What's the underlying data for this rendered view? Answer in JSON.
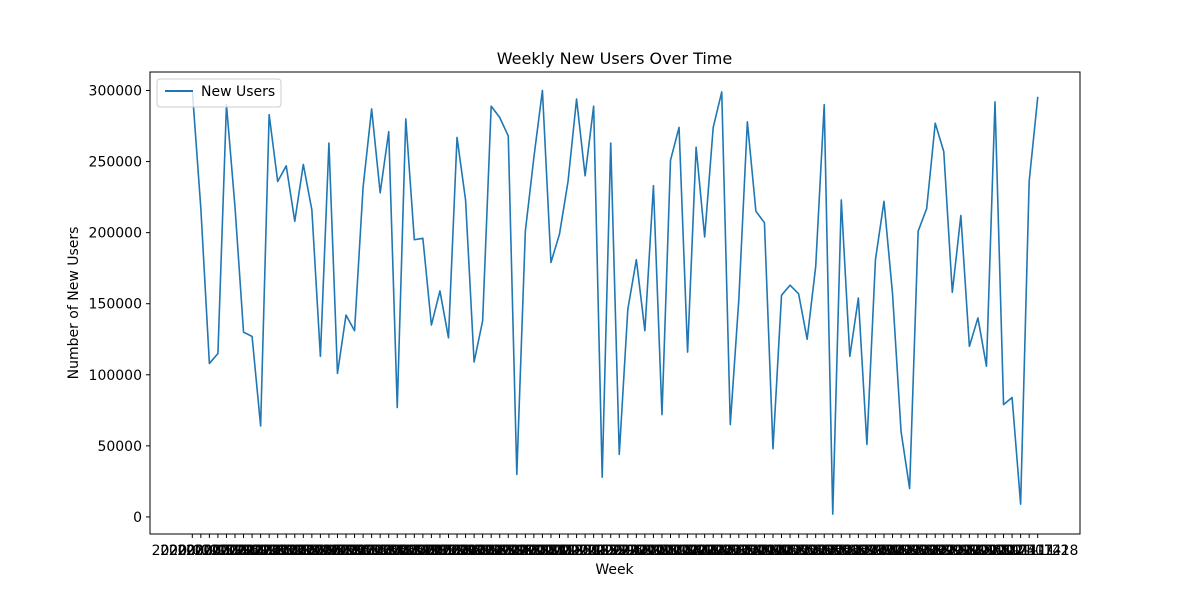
{
  "chart_data": {
    "type": "line",
    "title": "Weekly New Users Over Time",
    "xlabel": "Week",
    "ylabel": "Number of New Users",
    "ylim": [
      -12000,
      313000
    ],
    "yticks": [
      0,
      50000,
      100000,
      150000,
      200000,
      250000,
      300000
    ],
    "ytick_labels": [
      "0",
      "50000",
      "100000",
      "150000",
      "200000",
      "250000",
      "300000"
    ],
    "x_tick_labels_note": "",
    "x_tick_labels": [
      "2020-01-05",
      "2020-01-12",
      "2020-01-19",
      "2020-01-26",
      "2020-02-02",
      "2020-02-09",
      "2020-02-16",
      "2020-02-23",
      "2020-03-01",
      "2020-03-08",
      "2020-03-15",
      "2020-03-22",
      "2020-03-29",
      "2020-04-05",
      "2020-04-12",
      "2020-04-19",
      "2020-04-26",
      "2020-05-03",
      "2020-05-10",
      "2020-05-17",
      "2020-05-24",
      "2020-05-31",
      "2020-06-07",
      "2020-06-14",
      "2020-06-21",
      "2020-06-28",
      "2020-07-05",
      "2020-07-12",
      "2020-07-19",
      "2020-07-26",
      "2020-08-02",
      "2020-08-09",
      "2020-08-16",
      "2020-08-23",
      "2020-08-30",
      "2020-09-06",
      "2020-09-13",
      "2020-09-20",
      "2020-09-27",
      "2020-10-04",
      "2020-10-11",
      "2020-10-18",
      "2020-10-25",
      "2020-11-01",
      "2020-11-08",
      "2020-11-15",
      "2020-11-22",
      "2020-11-29",
      "2020-12-06",
      "2020-12-13",
      "2020-12-20",
      "2020-12-27",
      "2021-01-03",
      "2021-01-10",
      "2021-01-17",
      "2021-01-24",
      "2021-01-31",
      "2021-02-07",
      "2021-02-14",
      "2021-02-21",
      "2021-02-28",
      "2021-03-07",
      "2021-03-14",
      "2021-03-21",
      "2021-03-28",
      "2021-04-04",
      "2021-04-11",
      "2021-04-18",
      "2021-04-25",
      "2021-05-02",
      "2021-05-09",
      "2021-05-16",
      "2021-05-23",
      "2021-05-30",
      "2021-06-06",
      "2021-06-13",
      "2021-06-20",
      "2021-06-27",
      "2021-07-04",
      "2021-07-11",
      "2021-07-18",
      "2021-07-25",
      "2021-08-01",
      "2021-08-08",
      "2021-08-15",
      "2021-08-22",
      "2021-08-29",
      "2021-09-05",
      "2021-09-12",
      "2021-09-19",
      "2021-09-26",
      "2021-10-03",
      "2021-10-10",
      "2021-10-17",
      "2021-10-24",
      "2021-10-31",
      "2021-11-07",
      "2021-11-14",
      "2021-11-21",
      "2021-11-28"
    ],
    "legend": {
      "position": "upper left",
      "entries": [
        "New Users"
      ]
    },
    "grid": false,
    "series": [
      {
        "name": "New Users",
        "color": "#1f77b4",
        "values": [
          300000,
          217000,
          108000,
          115000,
          290000,
          218000,
          130000,
          127000,
          64000,
          283000,
          236000,
          247000,
          208000,
          248000,
          216000,
          113000,
          263000,
          101000,
          142000,
          131000,
          232000,
          287000,
          228000,
          271000,
          77000,
          280000,
          195000,
          196000,
          135000,
          159000,
          126000,
          267000,
          223000,
          109000,
          138000,
          289000,
          281000,
          268000,
          30000,
          201000,
          253000,
          300000,
          179000,
          199000,
          236000,
          294000,
          240000,
          289000,
          28000,
          263000,
          44000,
          146000,
          181000,
          131000,
          233000,
          72000,
          251000,
          274000,
          116000,
          260000,
          197000,
          274000,
          299000,
          65000,
          153000,
          278000,
          215000,
          207000,
          48000,
          156000,
          163000,
          157000,
          125000,
          176000,
          290000,
          2000,
          223000,
          113000,
          154000,
          51000,
          181000,
          222000,
          157000,
          60000,
          20000,
          201000,
          217000,
          277000,
          257000,
          158000,
          212000,
          120000,
          140000,
          106000,
          292000,
          79000,
          84000,
          9000,
          236000,
          295000
        ]
      }
    ]
  }
}
